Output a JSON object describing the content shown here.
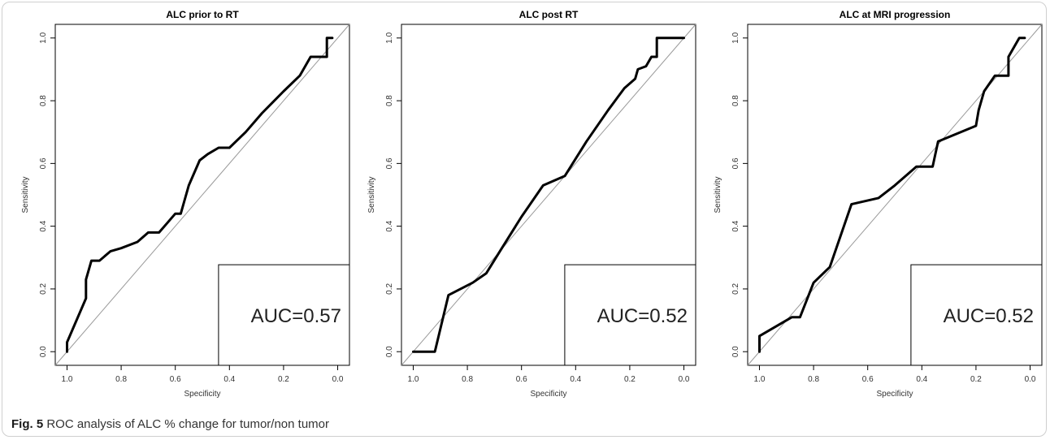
{
  "figure": {
    "label": "Fig. 5",
    "caption": "ROC analysis of ALC % change for tumor/non tumor"
  },
  "style": {
    "curve_color": "#000000",
    "reference_color": "#9a9a9a",
    "frame_color": "#cfcfcf"
  },
  "chart_data": [
    {
      "type": "line",
      "title": "ALC prior to RT",
      "xlabel": "Specificity",
      "ylabel": "Sensitivity",
      "xlim": [
        1.0,
        0.0
      ],
      "ylim": [
        0.0,
        1.0
      ],
      "x_reversed": true,
      "xticks": [
        "1.0",
        "0.8",
        "0.6",
        "0.4",
        "0.2",
        "0.0"
      ],
      "yticks": [
        "0.0",
        "0.2",
        "0.4",
        "0.6",
        "0.8",
        "1.0"
      ],
      "grid": false,
      "reference_line": true,
      "annotation": "AUC=0.57",
      "series": [
        {
          "x": [
            1.0,
            1.0,
            0.93,
            0.93,
            0.91,
            0.88,
            0.84,
            0.8,
            0.74,
            0.7,
            0.66,
            0.63,
            0.6,
            0.58,
            0.55,
            0.51,
            0.48,
            0.44,
            0.4,
            0.34,
            0.28,
            0.2,
            0.14,
            0.1,
            0.04,
            0.04,
            0.02
          ],
          "y": [
            0.0,
            0.03,
            0.17,
            0.23,
            0.29,
            0.29,
            0.32,
            0.33,
            0.35,
            0.38,
            0.38,
            0.41,
            0.44,
            0.44,
            0.53,
            0.61,
            0.63,
            0.65,
            0.65,
            0.7,
            0.76,
            0.83,
            0.88,
            0.94,
            0.94,
            1.0,
            1.0
          ]
        }
      ]
    },
    {
      "type": "line",
      "title": "ALC post RT",
      "xlabel": "Specificity",
      "ylabel": "Sensitivity",
      "xlim": [
        1.0,
        0.0
      ],
      "ylim": [
        0.0,
        1.0
      ],
      "x_reversed": true,
      "xticks": [
        "1.0",
        "0.8",
        "0.6",
        "0.4",
        "0.2",
        "0.0"
      ],
      "yticks": [
        "0.0",
        "0.2",
        "0.4",
        "0.6",
        "0.8",
        "1.0"
      ],
      "grid": false,
      "reference_line": true,
      "annotation": "AUC=0.52",
      "series": [
        {
          "x": [
            1.0,
            0.92,
            0.87,
            0.78,
            0.73,
            0.68,
            0.6,
            0.52,
            0.44,
            0.36,
            0.28,
            0.22,
            0.18,
            0.17,
            0.14,
            0.12,
            0.1,
            0.1,
            0.0
          ],
          "y": [
            0.0,
            0.0,
            0.18,
            0.22,
            0.25,
            0.32,
            0.43,
            0.53,
            0.56,
            0.67,
            0.77,
            0.84,
            0.87,
            0.9,
            0.91,
            0.94,
            0.94,
            1.0,
            1.0
          ]
        }
      ]
    },
    {
      "type": "line",
      "title": "ALC at MRI progression",
      "xlabel": "Specificity",
      "ylabel": "Sensitivity",
      "xlim": [
        1.0,
        0.0
      ],
      "ylim": [
        0.0,
        1.0
      ],
      "x_reversed": true,
      "xticks": [
        "1.0",
        "0.8",
        "0.6",
        "0.4",
        "0.2",
        "0.0"
      ],
      "yticks": [
        "0.0",
        "0.2",
        "0.4",
        "0.6",
        "0.8",
        "1.0"
      ],
      "grid": false,
      "reference_line": true,
      "annotation": "AUC=0.52",
      "series": [
        {
          "x": [
            1.0,
            1.0,
            0.88,
            0.85,
            0.8,
            0.74,
            0.7,
            0.66,
            0.56,
            0.5,
            0.42,
            0.36,
            0.34,
            0.2,
            0.19,
            0.17,
            0.13,
            0.08,
            0.08,
            0.04,
            0.02
          ],
          "y": [
            0.0,
            0.05,
            0.11,
            0.11,
            0.22,
            0.27,
            0.37,
            0.47,
            0.49,
            0.53,
            0.59,
            0.59,
            0.67,
            0.72,
            0.77,
            0.83,
            0.88,
            0.88,
            0.94,
            1.0,
            1.0
          ]
        }
      ]
    }
  ]
}
